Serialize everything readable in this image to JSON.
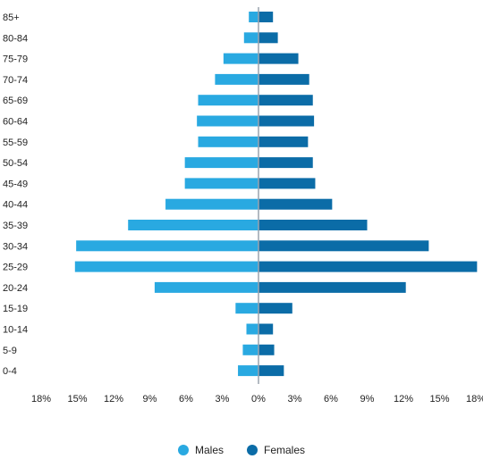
{
  "chart_data": {
    "type": "bar",
    "orientation": "horizontal",
    "title": "",
    "xlabel": "",
    "ylabel": "",
    "categories": [
      "85+",
      "80-84",
      "75-79",
      "70-74",
      "65-69",
      "60-64",
      "55-59",
      "50-54",
      "45-49",
      "40-44",
      "35-39",
      "30-34",
      "25-29",
      "20-24",
      "15-19",
      "10-14",
      "5-9",
      "0-4"
    ],
    "xlim": [
      -18,
      18
    ],
    "xticks": [
      -18,
      -15,
      -12,
      -9,
      -6,
      -3,
      0,
      3,
      6,
      9,
      12,
      15,
      18
    ],
    "xtick_labels": [
      "18%",
      "15%",
      "12%",
      "9%",
      "6%",
      "3%",
      "0%",
      "3%",
      "6%",
      "9%",
      "12%",
      "15%",
      "18%"
    ],
    "grid": false,
    "legend_position": "bottom-center",
    "series": [
      {
        "name": "Males",
        "color": "#29a9e1",
        "values": [
          0.8,
          1.2,
          2.9,
          3.6,
          5.0,
          5.1,
          5.0,
          6.1,
          6.1,
          7.7,
          10.8,
          15.1,
          15.2,
          8.6,
          1.9,
          1.0,
          1.3,
          1.7
        ]
      },
      {
        "name": "Females",
        "color": "#0b6ca7",
        "values": [
          1.2,
          1.6,
          3.3,
          4.2,
          4.5,
          4.6,
          4.1,
          4.5,
          4.7,
          6.1,
          9.0,
          14.1,
          18.1,
          12.2,
          2.8,
          1.2,
          1.3,
          2.1
        ]
      }
    ]
  }
}
